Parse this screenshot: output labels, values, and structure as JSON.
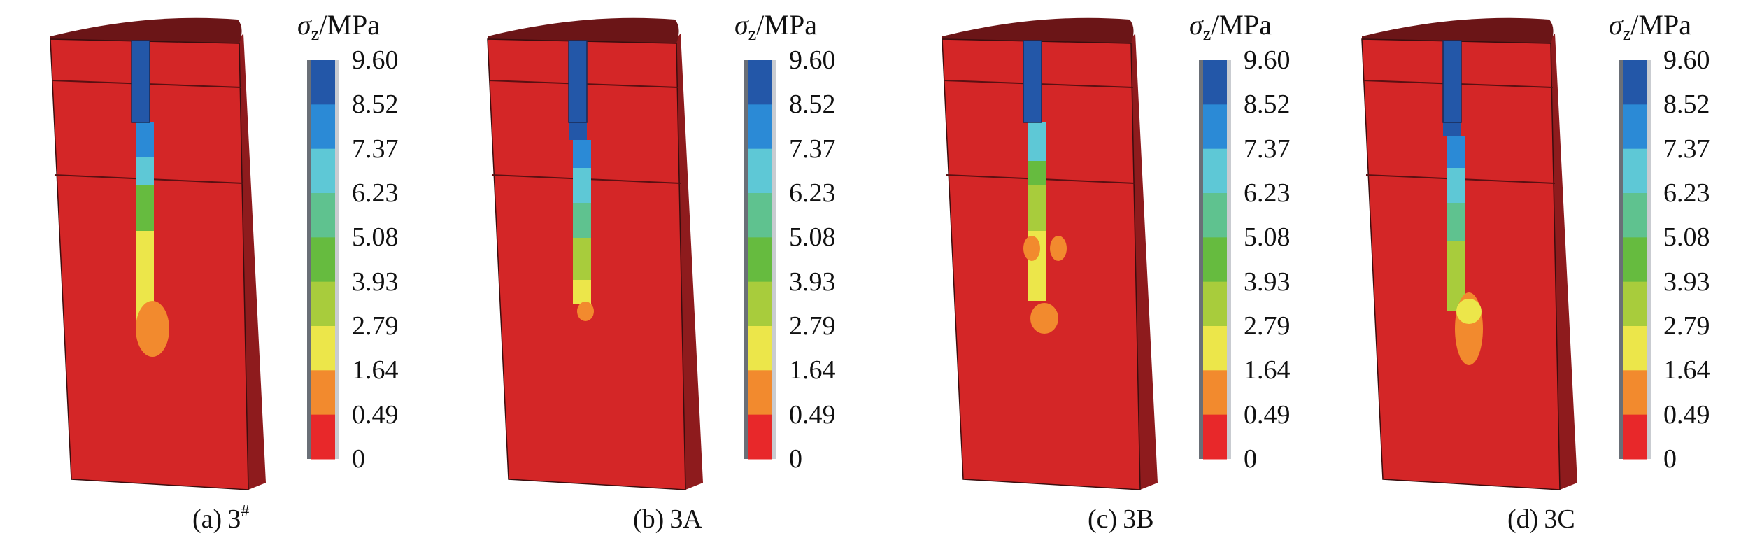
{
  "figure": {
    "legend": {
      "title_symbol": "σ",
      "title_subscript": "z",
      "title_unit": "/MPa",
      "ticks": [
        "9.60",
        "8.52",
        "7.37",
        "6.23",
        "5.08",
        "3.93",
        "2.79",
        "1.64",
        "0.49",
        "0"
      ],
      "band_colors": [
        "#2357a8",
        "#2b8ad6",
        "#5ec8d6",
        "#5fc28f",
        "#66bb3f",
        "#a8cc3c",
        "#ece64a",
        "#f28a2e",
        "#e8282a"
      ]
    },
    "model_colors": {
      "body": "#d42627",
      "body_side": "#8e1b1d",
      "top": "#6b1517"
    },
    "panels": [
      {
        "label": "(a)",
        "name": "3",
        "sup": "#"
      },
      {
        "label": "(b)",
        "name": "3A",
        "sup": ""
      },
      {
        "label": "(c)",
        "name": "3B",
        "sup": ""
      },
      {
        "label": "(d)",
        "name": "3C",
        "sup": ""
      }
    ]
  }
}
